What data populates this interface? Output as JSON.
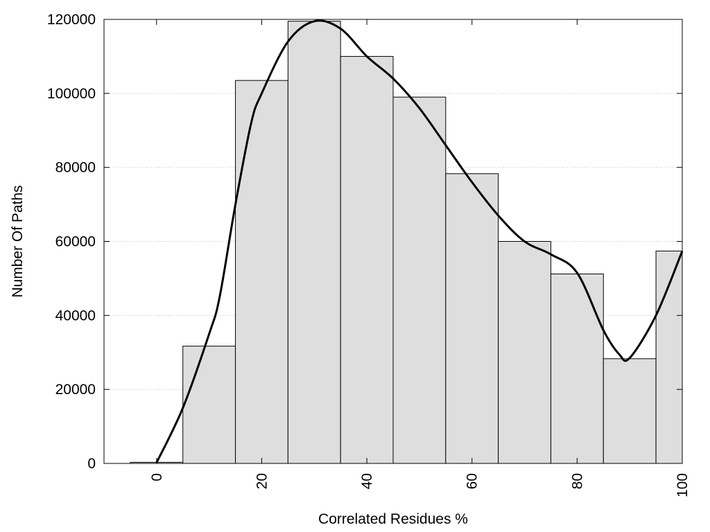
{
  "chart_data": {
    "type": "bar",
    "xlabel": "Correlated Residues %",
    "ylabel": "Number Of Paths",
    "xlim": [
      -10,
      100
    ],
    "ylim": [
      0,
      120000
    ],
    "bin_width": 10,
    "x_ticks": [
      0,
      20,
      40,
      60,
      80,
      100
    ],
    "x_tick_labels": [
      "0",
      "20",
      "40",
      "60",
      "80",
      "100"
    ],
    "y_ticks": [
      0,
      20000,
      40000,
      60000,
      80000,
      100000,
      120000
    ],
    "y_tick_labels": [
      "0",
      "20000",
      "40000",
      "60000",
      "80000",
      "100000",
      "120000"
    ],
    "grid": "horizontal dotted",
    "bars": {
      "x": [
        0,
        10,
        20,
        30,
        40,
        50,
        60,
        70,
        80,
        90,
        100
      ],
      "values": [
        300,
        31700,
        103500,
        119500,
        110000,
        99000,
        78300,
        60000,
        51200,
        28300,
        57400
      ],
      "color": "#dedede",
      "edge_color": "#000000"
    },
    "curve": {
      "x": [
        0,
        5,
        10,
        12,
        15,
        18,
        20,
        25,
        30,
        35,
        40,
        45,
        50,
        55,
        60,
        65,
        70,
        75,
        80,
        85,
        88,
        90,
        95,
        100
      ],
      "y": [
        200,
        15000,
        35000,
        45000,
        70000,
        92000,
        100000,
        114000,
        119500,
        117500,
        110000,
        104000,
        96000,
        86000,
        76000,
        67000,
        60000,
        56500,
        51500,
        36000,
        29500,
        28500,
        40000,
        57400
      ],
      "color": "#000000"
    }
  }
}
